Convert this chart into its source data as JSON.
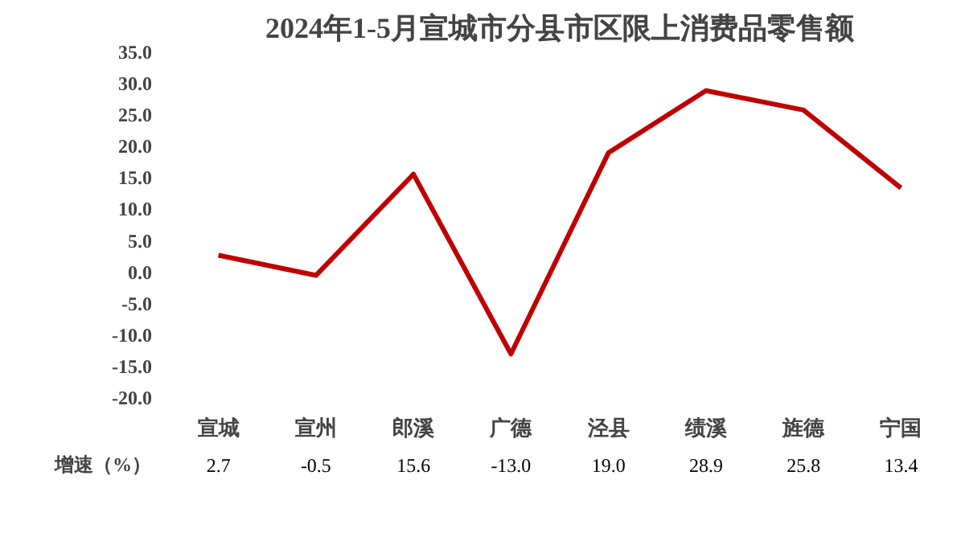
{
  "chart_data": {
    "type": "line",
    "title": "2024年1-5月宣城市分县市区限上消费品零售额",
    "categories": [
      "宣城",
      "宣州",
      "郎溪",
      "广德",
      "泾县",
      "绩溪",
      "旌德",
      "宁国"
    ],
    "series": [
      {
        "name": "增速（%）",
        "color": "#c00000",
        "values": [
          2.7,
          -0.5,
          15.6,
          -13.0,
          19.0,
          28.9,
          25.8,
          13.4
        ],
        "value_labels": [
          "2.7",
          "-0.5",
          "15.6",
          "-13.0",
          "19.0",
          "28.9",
          "25.8",
          "13.4"
        ]
      }
    ],
    "ylim": [
      -20,
      35
    ],
    "yticks": [
      {
        "value": -20,
        "label": "-20.0"
      },
      {
        "value": -15,
        "label": "-15.0"
      },
      {
        "value": -10,
        "label": "-10.0"
      },
      {
        "value": -5,
        "label": "-5.0"
      },
      {
        "value": 0,
        "label": "0.0"
      },
      {
        "value": 5,
        "label": "5.0"
      },
      {
        "value": 10,
        "label": "10.0"
      },
      {
        "value": 15,
        "label": "15.0"
      },
      {
        "value": 20,
        "label": "20.0"
      },
      {
        "value": 25,
        "label": "25.0"
      },
      {
        "value": 30,
        "label": "30.0"
      },
      {
        "value": 35,
        "label": "35.0"
      }
    ],
    "legend": "bottom",
    "marker": "none",
    "line_style": "solid",
    "grid": false
  }
}
